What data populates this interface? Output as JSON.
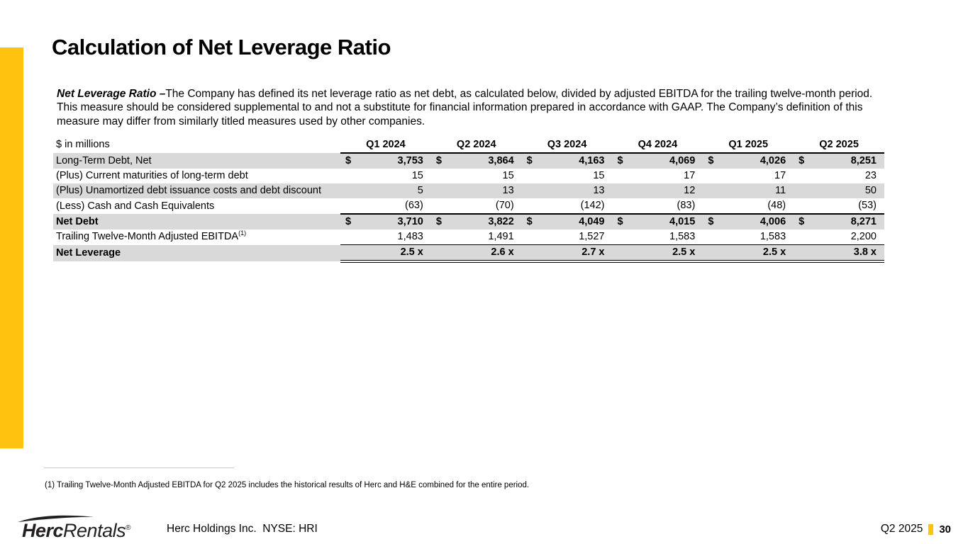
{
  "slide": {
    "title": "Calculation of Net Leverage Ratio",
    "intro_lead": "Net Leverage Ratio –",
    "intro_body": "The Company has defined its net leverage ratio as net debt, as calculated below, divided by adjusted EBITDA for the trailing twelve-month period.  This measure should be considered supplemental to and not a substitute for financial information prepared in accordance with GAAP. The Company’s definition of this measure may differ from similarly titled measures used by other companies."
  },
  "table": {
    "unit_label": "$ in millions",
    "columns": [
      "Q1 2024",
      "Q2 2024",
      "Q3 2024",
      "Q4 2024",
      "Q1 2025",
      "Q2 2025"
    ],
    "rows": [
      {
        "label": "Long-Term Debt, Net",
        "values": [
          "3,753",
          "3,864",
          "4,163",
          "4,069",
          "4,026",
          "8,251"
        ],
        "dollar": true,
        "shaded": true,
        "bold_values": true
      },
      {
        "label": "(Plus) Current maturities of long-term debt",
        "values": [
          "15",
          "15",
          "15",
          "17",
          "17",
          "23"
        ]
      },
      {
        "label": "(Plus) Unamortized debt issuance costs and debt discount",
        "values": [
          "5",
          "13",
          "13",
          "12",
          "11",
          "50"
        ],
        "shaded": true
      },
      {
        "label": "(Less) Cash and Cash Equivalents",
        "values": [
          "(63)",
          "(70)",
          "(142)",
          "(83)",
          "(48)",
          "(53)"
        ],
        "line_below": "thick"
      },
      {
        "label": "Net Debt",
        "values": [
          "3,710",
          "3,822",
          "4,049",
          "4,015",
          "4,006",
          "8,271"
        ],
        "dollar": true,
        "shaded": true,
        "bold_label": true,
        "bold_values": true
      },
      {
        "label": "Trailing Twelve-Month Adjusted EBITDA",
        "label_superscript": "(1)",
        "values": [
          "1,483",
          "1,491",
          "1,527",
          "1,583",
          "1,583",
          "2,200"
        ],
        "line_below": "thin"
      },
      {
        "label": "Net Leverage",
        "values": [
          "2.5 x",
          "2.6 x",
          "2.7 x",
          "2.5 x",
          "2.5 x",
          "3.8 x"
        ],
        "shaded": true,
        "bold_label": true,
        "bold_values": true,
        "line_below": "double"
      }
    ]
  },
  "footnote": "(1) Trailing Twelve-Month Adjusted EBITDA for Q2 2025 includes the historical results of Herc and H&E combined for the entire period.",
  "footer": {
    "logo": {
      "bold_part": "Herc",
      "light_part": "Rentals",
      "registered_mark": "®"
    },
    "company_line": "Herc Holdings Inc.  NYSE: HRI",
    "period": "Q2 2025",
    "page_number": "30"
  },
  "colors": {
    "accent_yellow": "#FFC20E",
    "row_shade": "#D9D9D9",
    "logo_charcoal": "#231F20"
  }
}
